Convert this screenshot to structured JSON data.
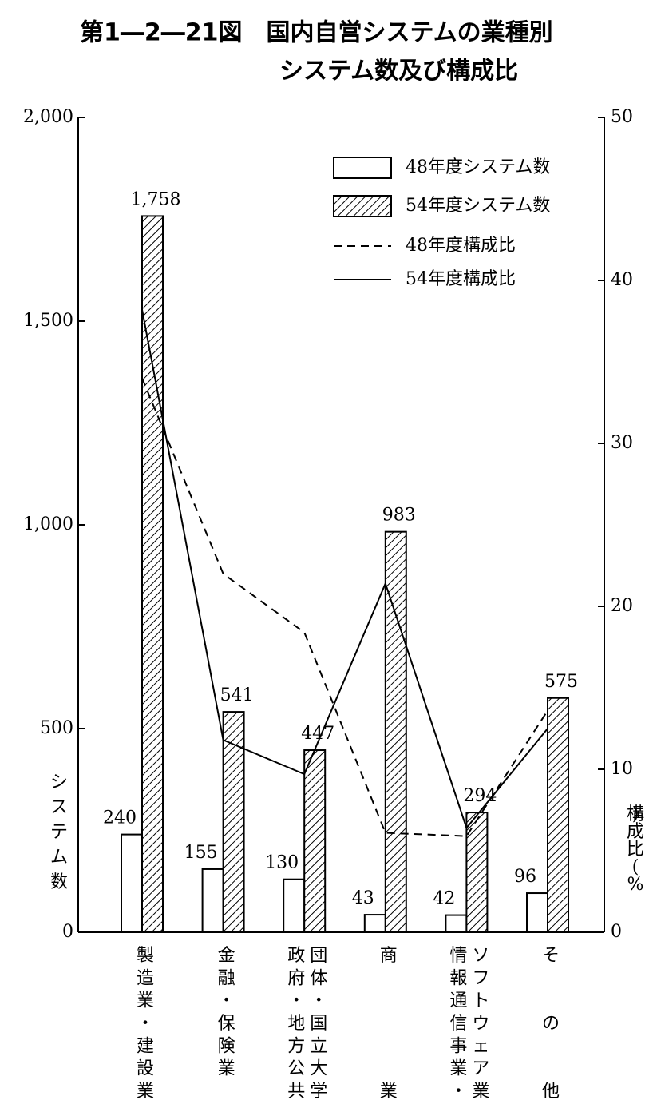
{
  "chart_data": {
    "type": "bar_line",
    "title_lines": [
      "第1―2―21図　国内自営システムの業種別",
      "システム数及び構成比"
    ],
    "y_label": "システム数",
    "y2_label": "構成比(%)",
    "categories": [
      "製造業・建設業",
      "金融・保険業",
      "政府・地方公共団体・国立大学",
      "商業",
      "情報通信事業・ソフトウェア業",
      "その他"
    ],
    "series": [
      {
        "name": "48年度システム数",
        "type": "bar",
        "color": "#ffffff",
        "values": [
          240,
          155,
          130,
          43,
          42,
          96
        ]
      },
      {
        "name": "54年度システム数",
        "type": "bar",
        "color": "hatch",
        "values": [
          1758,
          541,
          447,
          983,
          294,
          575
        ],
        "value_labels": [
          "1,758",
          "541",
          "447",
          "983",
          "294",
          "575"
        ]
      },
      {
        "name": "48年度構成比",
        "type": "line",
        "axis": "y2",
        "color": "#000000",
        "line_style": "dashed",
        "values": [
          34.0,
          22.0,
          18.4,
          6.1,
          5.9,
          13.6
        ]
      },
      {
        "name": "54年度構成比",
        "type": "line",
        "axis": "y2",
        "color": "#000000",
        "line_style": "solid",
        "values": [
          38.2,
          11.8,
          9.7,
          21.4,
          6.4,
          12.5
        ]
      }
    ],
    "ylim": [
      0,
      2000
    ],
    "yticks": [
      0,
      500,
      {
        "value": 1000,
        "label": "1,000"
      },
      {
        "value": 1500,
        "label": "1,500"
      },
      {
        "value": 2000,
        "label": "2,000"
      }
    ],
    "y2lim": [
      0,
      50
    ],
    "y2ticks": [
      0,
      10,
      20,
      30,
      40,
      50
    ],
    "legend": "upper right"
  }
}
